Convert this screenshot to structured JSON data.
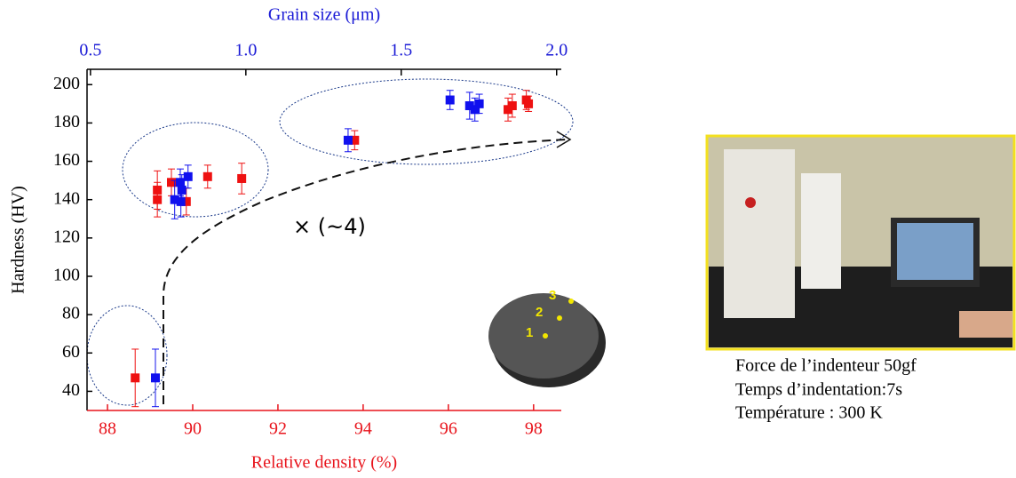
{
  "chart_data": {
    "type": "scatter",
    "xlabel": "Relative density (%)",
    "x2label": "Grain size (μm)",
    "ylabel": "Hardness (HV)",
    "xlim": [
      87.52,
      98.65
    ],
    "xticks": [
      88,
      90,
      92,
      94,
      96,
      98
    ],
    "x2lim": [
      0.489,
      2.015
    ],
    "x2ticks": [
      0.5,
      {
        "value": 1.0,
        "label": "1.0"
      },
      1.5,
      {
        "value": 2.0,
        "label": "2.0"
      }
    ],
    "ylim": [
      30,
      208
    ],
    "yticks": [
      40,
      60,
      80,
      100,
      120,
      140,
      160,
      180,
      200
    ],
    "xcolor": "#e8141c",
    "x2color": "#1a1ad6",
    "series": [
      {
        "color": "#ee1111",
        "axis": "x",
        "x": [
          88.65,
          89.17,
          89.17,
          89.5,
          89.85,
          90.35,
          91.15,
          93.8,
          97.4,
          97.5,
          97.83,
          97.88
        ],
        "values": [
          47,
          145,
          140,
          149,
          139,
          152,
          151,
          171,
          187,
          189,
          192,
          190
        ],
        "errors": [
          15,
          10,
          9,
          7,
          7,
          6,
          8,
          5,
          6,
          6,
          5,
          4
        ]
      },
      {
        "color": "#1010ee",
        "axis": "x2",
        "x": [
          0.709,
          0.771,
          0.789,
          0.794,
          0.791,
          0.814,
          1.329,
          1.657,
          1.72,
          1.737,
          1.751
        ],
        "values": [
          47,
          140,
          149,
          145,
          139,
          152,
          171,
          192,
          189,
          187,
          190
        ],
        "errors": [
          15,
          10,
          7,
          8,
          8,
          6,
          6,
          5,
          7,
          6,
          5
        ]
      }
    ],
    "annotation": "× (~4)",
    "points": [
      "1",
      "2",
      "3"
    ]
  },
  "caption": [
    "Force de l’indenteur 50gf",
    "Temps d’indentation:7s",
    "Température : 300 K"
  ]
}
